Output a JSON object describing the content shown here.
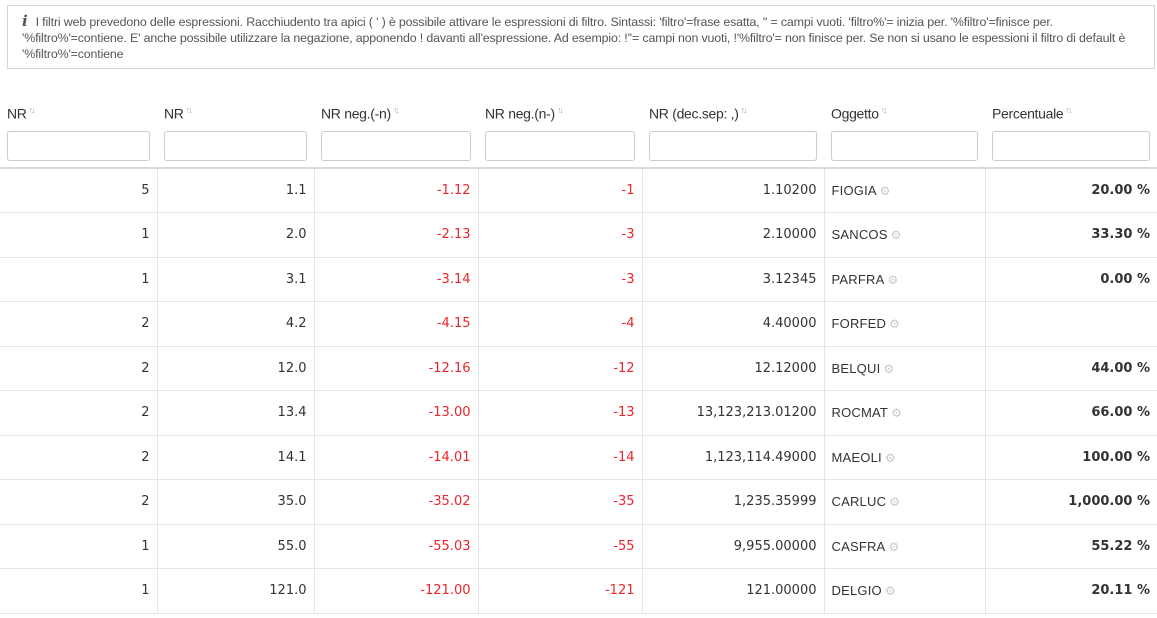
{
  "info": {
    "icon": "info-icon",
    "text": "I filtri web prevedono delle espressioni. Racchiudento tra apici ( ' ) è possibile attivare le espressioni di filtro. Sintassi: 'filtro'=frase esatta, '' = campi vuoti. 'filtro%'= inizia per. '%filtro'=finisce per. '%filtro%'=contiene. E' anche possibile utilizzare la negazione, apponendo ! davanti all'espressione. Ad esempio: !''= campi non vuoti, !'%filtro'= non finisce per. Se non si usano le espessioni il filtro di default è '%filtro%'=contiene"
  },
  "columns": [
    {
      "label": "NR",
      "filter_value": ""
    },
    {
      "label": "NR",
      "filter_value": ""
    },
    {
      "label": "NR neg.(-n)",
      "filter_value": ""
    },
    {
      "label": "NR neg.(n-)",
      "filter_value": ""
    },
    {
      "label": "NR (dec.sep: ,)",
      "filter_value": ""
    },
    {
      "label": "Oggetto",
      "filter_value": ""
    },
    {
      "label": "Percentuale",
      "filter_value": ""
    }
  ],
  "rows": [
    [
      "5",
      "1.1",
      "-1.12",
      "-1",
      "1.10200",
      "FIOGIA",
      "20.00 %"
    ],
    [
      "1",
      "2.0",
      "-2.13",
      "-3",
      "2.10000",
      "SANCOS",
      "33.30 %"
    ],
    [
      "1",
      "3.1",
      "-3.14",
      "-3",
      "3.12345",
      "PARFRA",
      "0.00 %"
    ],
    [
      "2",
      "4.2",
      "-4.15",
      "-4",
      "4.40000",
      "FORFED",
      ""
    ],
    [
      "2",
      "12.0",
      "-12.16",
      "-12",
      "12.12000",
      "BELQUI",
      "44.00 %"
    ],
    [
      "2",
      "13.4",
      "-13.00",
      "-13",
      "13,123,213.01200",
      "ROCMAT",
      "66.00 %"
    ],
    [
      "2",
      "14.1",
      "-14.01",
      "-14",
      "1,123,114.49000",
      "MAEOLI",
      "100.00 %"
    ],
    [
      "2",
      "35.0",
      "-35.02",
      "-35",
      "1,235.35999",
      "CARLUC",
      "1,000.00 %"
    ],
    [
      "1",
      "55.0",
      "-55.03",
      "-55",
      "9,955.00000",
      "CASFRA",
      "55.22 %"
    ],
    [
      "1",
      "121.0",
      "-121.00",
      "-121",
      "121.00000",
      "DELGIO",
      "20.11 %"
    ]
  ],
  "icons": {
    "sort": "sort-arrows-icon",
    "object_action": "gear-icon"
  },
  "colors": {
    "negative": "#e8262c",
    "border": "#e6e6e6"
  }
}
